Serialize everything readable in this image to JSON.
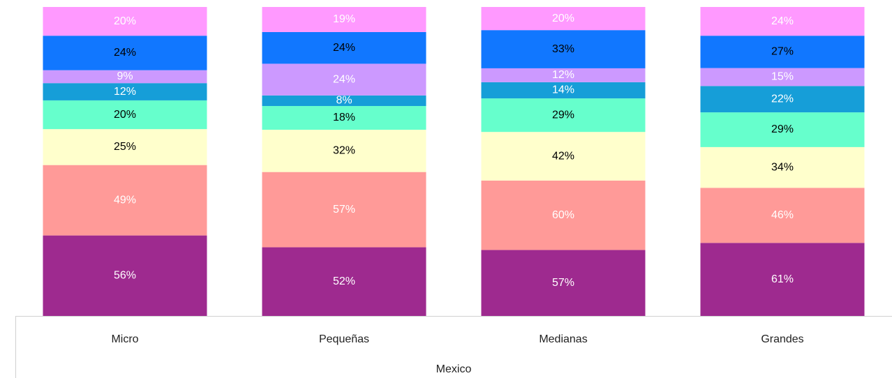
{
  "chart_data": {
    "type": "stacked_bar",
    "stack": "percent",
    "categories": [
      "Micro",
      "Pequeñas",
      "Medianas",
      "Grandes"
    ],
    "group_label": "Mexico",
    "series": [
      {
        "color": "#9e2a8f",
        "label_color": "#ffffff",
        "values": [
          56,
          52,
          57,
          61
        ],
        "value_labels": [
          "56%",
          "52%",
          "57%",
          "61%"
        ]
      },
      {
        "color": "#ff9a98",
        "label_color": "#ffffff",
        "values": [
          49,
          57,
          60,
          46
        ],
        "value_labels": [
          "49%",
          "57%",
          "60%",
          "46%"
        ]
      },
      {
        "color": "#ffffcc",
        "label_color": "#000000",
        "values": [
          25,
          32,
          42,
          34
        ],
        "value_labels": [
          "25%",
          "32%",
          "42%",
          "34%"
        ]
      },
      {
        "color": "#66ffcc",
        "label_color": "#000000",
        "values": [
          20,
          18,
          29,
          29
        ],
        "value_labels": [
          "20%",
          "18%",
          "29%",
          "29%"
        ]
      },
      {
        "color": "#169ed8",
        "label_color": "#ffffff",
        "values": [
          12,
          8,
          14,
          22
        ],
        "value_labels": [
          "12%",
          "8%",
          "14%",
          "22%"
        ]
      },
      {
        "color": "#cc99ff",
        "label_color": "#ffffff",
        "values": [
          9,
          24,
          12,
          15
        ],
        "value_labels": [
          "9%",
          "24%",
          "12%",
          "15%"
        ]
      },
      {
        "color": "#1177ff",
        "label_color": "#000000",
        "values": [
          24,
          24,
          33,
          27
        ],
        "value_labels": [
          "24%",
          "24%",
          "33%",
          "27%"
        ]
      },
      {
        "color": "#ff99ff",
        "label_color": "#ffffff",
        "values": [
          20,
          19,
          20,
          24
        ],
        "value_labels": [
          "20%",
          "19%",
          "20%",
          "24%"
        ]
      }
    ]
  }
}
